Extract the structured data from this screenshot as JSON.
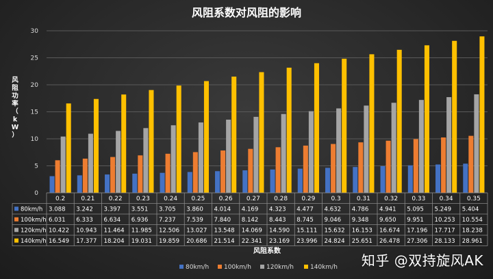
{
  "chart_data": {
    "type": "bar",
    "title": "风阻系数对风阻的影响",
    "xlabel": "风阻系数",
    "ylabel": "风阻功率（kW）",
    "ylim": [
      0,
      30
    ],
    "yticks": [
      0,
      5,
      10,
      15,
      20,
      25,
      30
    ],
    "grid": true,
    "legend_position": "bottom",
    "categories": [
      "0.2",
      "0.21",
      "0.22",
      "0.23",
      "0.24",
      "0.25",
      "0.26",
      "0.27",
      "0.28",
      "0.29",
      "0.3",
      "0.31",
      "0.32",
      "0.33",
      "0.34",
      "0.35"
    ],
    "series": [
      {
        "name": "80km/h",
        "color": "#4472C4",
        "values": [
          "3.088",
          "3.242",
          "3.397",
          "3.551",
          "3.705",
          "3.860",
          "4.014",
          "4.169",
          "4.323",
          "4.477",
          "4.632",
          "4.786",
          "4.941",
          "5.095",
          "5.249",
          "5.404"
        ]
      },
      {
        "name": "100km/h",
        "color": "#ED7D31",
        "values": [
          "6.031",
          "6.333",
          "6.634",
          "6.936",
          "7.237",
          "7.539",
          "7.840",
          "8.142",
          "8.443",
          "8.745",
          "9.046",
          "9.348",
          "9.650",
          "9.951",
          "10.253",
          "10.554"
        ]
      },
      {
        "name": "120km/h",
        "color": "#A5A5A5",
        "values": [
          "10.422",
          "10.943",
          "11.464",
          "11.985",
          "12.506",
          "13.027",
          "13.548",
          "14.069",
          "14.590",
          "15.111",
          "15.632",
          "16.153",
          "16.674",
          "17.196",
          "17.717",
          "18.238"
        ]
      },
      {
        "name": "140km/h",
        "color": "#FFC000",
        "values": [
          "16.549",
          "17.377",
          "18.204",
          "19.031",
          "19.859",
          "20.686",
          "21.514",
          "22.341",
          "23.169",
          "23.996",
          "24.824",
          "25.651",
          "26.478",
          "27.306",
          "28.133",
          "28.961"
        ]
      }
    ]
  },
  "watermark": "知乎 @双持旋风AK"
}
